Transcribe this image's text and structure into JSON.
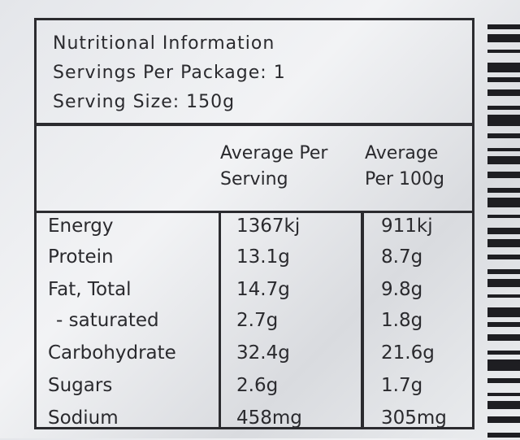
{
  "header": {
    "title": "Nutritional Information",
    "servings_per_package": "Servings Per Package: 1",
    "serving_size": "Serving Size: 150g"
  },
  "columns": {
    "per_serving_line1": "Average Per",
    "per_serving_line2": "Serving",
    "per_100g_line1": "Average",
    "per_100g_line2": "Per 100g"
  },
  "rows": [
    {
      "name": "Energy",
      "per_serving": "1367kj",
      "per_100g": "911kj"
    },
    {
      "name": "Protein",
      "per_serving": "13.1g",
      "per_100g": "8.7g"
    },
    {
      "name": "Fat, Total",
      "per_serving": "14.7g",
      "per_100g": "9.8g"
    },
    {
      "name": "- saturated",
      "per_serving": "2.7g",
      "per_100g": "1.8g"
    },
    {
      "name": "Carbohydrate",
      "per_serving": "32.4g",
      "per_100g": "21.6g"
    },
    {
      "name": "Sugars",
      "per_serving": "2.6g",
      "per_100g": "1.7g"
    },
    {
      "name": "Sodium",
      "per_serving": "458mg",
      "per_100g": "305mg"
    }
  ]
}
